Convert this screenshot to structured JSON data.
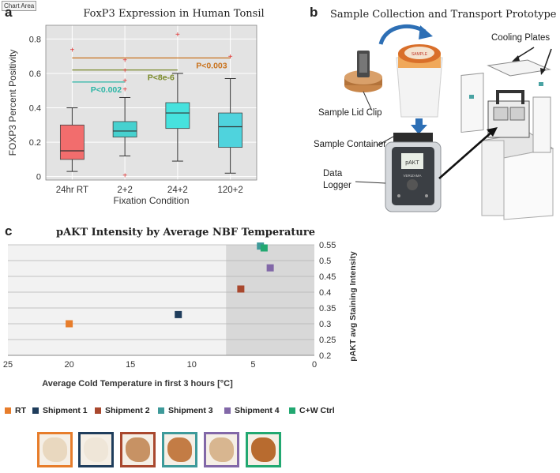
{
  "chart_area_tag": "Chart Area",
  "panel_a": {
    "letter": "a",
    "chart_data": {
      "type": "box",
      "title": "FoxP3 Expression in Human Tonsil",
      "xlabel": "Fixation Condition",
      "ylabel": "FOXP3 Percent Positivity",
      "ylim": [
        -0.02,
        0.88
      ],
      "yticks": [
        "0",
        "0.2",
        "0.4",
        "0.6",
        "0.8"
      ],
      "categories": [
        "24hr RT",
        "2+2",
        "24+2",
        "120+2"
      ],
      "box_colors": [
        "#f26d6d",
        "#46d1cf",
        "#46e2de",
        "#4fd3dd"
      ],
      "boxes": [
        {
          "min": 0.03,
          "q1": 0.1,
          "median": 0.15,
          "q3": 0.3,
          "max": 0.4,
          "outliers": [
            0.74
          ]
        },
        {
          "min": 0.12,
          "q1": 0.23,
          "median": 0.265,
          "q3": 0.32,
          "max": 0.46,
          "outliers": [
            0.68,
            0.62,
            0.56,
            0.51,
            0.01
          ]
        },
        {
          "min": 0.09,
          "q1": 0.28,
          "median": 0.37,
          "q3": 0.43,
          "max": 0.6,
          "outliers": [
            0.83
          ]
        },
        {
          "min": 0.02,
          "q1": 0.17,
          "median": 0.29,
          "q3": 0.37,
          "max": 0.57,
          "outliers": [
            0.7
          ]
        }
      ],
      "significance": [
        {
          "label": "P<0.002",
          "from": "24hr RT",
          "to": "2+2",
          "y": 0.55,
          "color": "#2bb5a5"
        },
        {
          "label": "P<8e-6",
          "from": "24hr RT",
          "to": "24+2",
          "y": 0.62,
          "color": "#7a8a2a"
        },
        {
          "label": "P<0.003",
          "from": "24hr RT",
          "to": "120+2",
          "y": 0.69,
          "color": "#c9731e"
        }
      ],
      "grid": true
    }
  },
  "panel_b": {
    "letter": "b",
    "title": "Sample Collection and Transport Prototype",
    "labels": {
      "lid_clip": "Sample Lid Clip",
      "container": "Sample Container",
      "logger_line1": "Data",
      "logger_line2": "Logger",
      "cooling": "Cooling Plates"
    },
    "device_brand": "VERIZAMA"
  },
  "panel_c": {
    "letter": "c",
    "chart_data": {
      "type": "scatter",
      "title": "pAKT Intensity by Average NBF Temperature",
      "xlabel": "Average Cold Temperature in first 3 hours [°C]",
      "ylabel": "pAKT avg Staining Intensity",
      "xlim": [
        25,
        0
      ],
      "ylim": [
        0.2,
        0.55
      ],
      "x_reversed": true,
      "y_axis_side": "right",
      "xticks": [
        "25",
        "20",
        "15",
        "10",
        "5",
        "0"
      ],
      "yticks": [
        "0.55",
        "0.5",
        "0.45",
        "0.4",
        "0.35",
        "0.3",
        "0.25",
        "0.2"
      ],
      "shaded_region": {
        "from": 7.2,
        "to": 0
      },
      "series": [
        {
          "name": "RT",
          "color": "#e77d2b",
          "points": [
            {
              "x": 20,
              "y": 0.3
            }
          ]
        },
        {
          "name": "Shipment 1",
          "color": "#1f3d5c",
          "points": [
            {
              "x": 11.1,
              "y": 0.329
            }
          ]
        },
        {
          "name": "Shipment 2",
          "color": "#a9482e",
          "points": [
            {
              "x": 6.0,
              "y": 0.41
            }
          ]
        },
        {
          "name": "Shipment 3",
          "color": "#3e9a9a",
          "points": [
            {
              "x": 4.4,
              "y": 0.546
            }
          ]
        },
        {
          "name": "Shipment 4",
          "color": "#8268a8",
          "points": [
            {
              "x": 3.6,
              "y": 0.477
            }
          ]
        },
        {
          "name": "C+W Ctrl",
          "color": "#22a871",
          "points": [
            {
              "x": 4.1,
              "y": 0.54
            }
          ]
        }
      ],
      "grid": true,
      "legend": "bottom"
    }
  }
}
